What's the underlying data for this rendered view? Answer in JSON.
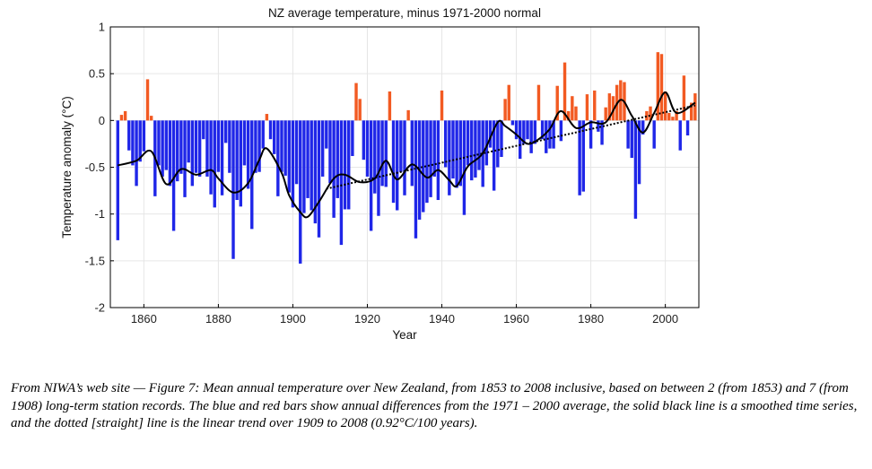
{
  "chart_data": {
    "type": "bar",
    "title": "NZ average temperature, minus 1971-2000 normal",
    "xlabel": "Year",
    "ylabel": "Temperature anomaly (°C)",
    "xlim": [
      1851,
      2009
    ],
    "ylim": [
      -2,
      1
    ],
    "xticks": [
      1860,
      1880,
      1900,
      1920,
      1940,
      1960,
      1980,
      2000
    ],
    "yticks": [
      1,
      0.5,
      0,
      -0.5,
      -1,
      -1.5,
      -2
    ],
    "grid": true,
    "colors": {
      "positive": "#f25a22",
      "negative": "#1f26e8",
      "smooth": "#000000",
      "trend": "#000000"
    },
    "series": [
      {
        "type": "bar",
        "x": [
          1853,
          1854,
          1855,
          1856,
          1857,
          1858,
          1859,
          1860,
          1861,
          1862,
          1863,
          1864,
          1865,
          1866,
          1867,
          1868,
          1869,
          1870,
          1871,
          1872,
          1873,
          1874,
          1875,
          1876,
          1877,
          1878,
          1879,
          1880,
          1881,
          1882,
          1883,
          1884,
          1885,
          1886,
          1887,
          1888,
          1889,
          1890,
          1891,
          1892,
          1893,
          1894,
          1895,
          1896,
          1897,
          1898,
          1899,
          1900,
          1901,
          1902,
          1903,
          1904,
          1905,
          1906,
          1907,
          1908,
          1909,
          1910,
          1911,
          1912,
          1913,
          1914,
          1915,
          1916,
          1917,
          1918,
          1919,
          1920,
          1921,
          1922,
          1923,
          1924,
          1925,
          1926,
          1927,
          1928,
          1929,
          1930,
          1931,
          1932,
          1933,
          1934,
          1935,
          1936,
          1937,
          1938,
          1939,
          1940,
          1941,
          1942,
          1943,
          1944,
          1945,
          1946,
          1947,
          1948,
          1949,
          1950,
          1951,
          1952,
          1953,
          1954,
          1955,
          1956,
          1957,
          1958,
          1959,
          1960,
          1961,
          1962,
          1963,
          1964,
          1965,
          1966,
          1967,
          1968,
          1969,
          1970,
          1971,
          1972,
          1973,
          1974,
          1975,
          1976,
          1977,
          1978,
          1979,
          1980,
          1981,
          1982,
          1983,
          1984,
          1985,
          1986,
          1987,
          1988,
          1989,
          1990,
          1991,
          1992,
          1993,
          1994,
          1995,
          1996,
          1997,
          1998,
          1999,
          2000,
          2001,
          2002,
          2003,
          2004,
          2005,
          2006,
          2007,
          2008
        ],
        "values": [
          -1.28,
          0.06,
          0.1,
          -0.32,
          -0.48,
          -0.7,
          -0.44,
          -0.33,
          0.44,
          0.05,
          -0.81,
          -0.48,
          -0.6,
          -0.53,
          -0.7,
          -1.18,
          -0.65,
          -0.57,
          -0.82,
          -0.45,
          -0.7,
          -0.56,
          -0.6,
          -0.2,
          -0.6,
          -0.79,
          -0.93,
          -0.55,
          -0.8,
          -0.24,
          -0.56,
          -1.48,
          -0.85,
          -0.92,
          -0.48,
          -0.73,
          -1.16,
          -0.56,
          -0.55,
          -0.3,
          0.07,
          -0.2,
          -0.36,
          -0.81,
          -0.55,
          -0.59,
          -0.77,
          -0.93,
          -0.68,
          -1.53,
          -0.99,
          -0.83,
          -0.96,
          -1.1,
          -1.25,
          -0.6,
          -0.3,
          -0.67,
          -1.04,
          -0.83,
          -1.33,
          -0.95,
          -0.95,
          -0.38,
          0.4,
          0.23,
          -0.42,
          -0.6,
          -1.18,
          -0.78,
          -1.02,
          -0.7,
          -0.71,
          0.31,
          -0.88,
          -0.96,
          -0.55,
          -0.8,
          0.11,
          -0.7,
          -1.26,
          -1.06,
          -0.98,
          -0.88,
          -0.82,
          -0.6,
          -0.85,
          0.32,
          -0.5,
          -0.8,
          -0.62,
          -0.72,
          -0.7,
          -1.01,
          -0.48,
          -0.64,
          -0.61,
          -0.53,
          -0.71,
          -0.48,
          -0.29,
          -0.75,
          -0.5,
          -0.39,
          0.23,
          0.38,
          -0.05,
          -0.2,
          -0.41,
          -0.25,
          -0.2,
          -0.35,
          -0.25,
          0.38,
          -0.2,
          -0.35,
          -0.3,
          -0.3,
          0.37,
          -0.22,
          0.62,
          0.1,
          0.26,
          0.15,
          -0.8,
          -0.76,
          0.28,
          -0.3,
          0.32,
          -0.12,
          -0.26,
          0.14,
          0.29,
          0.26,
          0.38,
          0.43,
          0.41,
          -0.3,
          -0.4,
          -1.05,
          -0.68,
          -0.15,
          0.1,
          0.15,
          -0.3,
          0.73,
          0.71,
          0.31,
          0.08,
          0.04,
          0.1,
          -0.32,
          0.48,
          -0.16,
          0.19,
          0.29
        ]
      },
      {
        "type": "line",
        "name": "smoothed",
        "x": [
          1853,
          1858,
          1862,
          1866,
          1870,
          1874,
          1878,
          1880,
          1884,
          1888,
          1891,
          1893,
          1897,
          1899,
          1902,
          1904,
          1907,
          1911,
          1914,
          1918,
          1922,
          1925,
          1928,
          1932,
          1936,
          1939,
          1942,
          1944,
          1947,
          1951,
          1955,
          1957,
          1960,
          1963,
          1966,
          1969,
          1972,
          1976,
          1980,
          1984,
          1988,
          1991,
          1994,
          1997,
          2000,
          2003,
          2008
        ],
        "values": [
          -0.48,
          -0.43,
          -0.33,
          -0.68,
          -0.52,
          -0.58,
          -0.53,
          -0.62,
          -0.77,
          -0.67,
          -0.42,
          -0.3,
          -0.56,
          -0.8,
          -0.98,
          -1.03,
          -0.87,
          -0.62,
          -0.58,
          -0.66,
          -0.62,
          -0.43,
          -0.63,
          -0.47,
          -0.61,
          -0.53,
          -0.64,
          -0.7,
          -0.49,
          -0.35,
          -0.02,
          -0.06,
          -0.15,
          -0.25,
          -0.2,
          -0.09,
          0.1,
          -0.08,
          -0.02,
          -0.02,
          0.22,
          0.05,
          -0.13,
          0.08,
          0.3,
          0.08,
          0.19
        ]
      },
      {
        "type": "line",
        "name": "linear trend",
        "x": [
          1909,
          2008
        ],
        "values": [
          -0.73,
          0.16
        ]
      }
    ]
  },
  "caption": "From NIWA’s web site — Figure 7: Mean annual temperature over New Zealand, from 1853 to 2008 inclusive, based on between 2 (from 1853) and 7 (from 1908) long-term station records. The blue and red bars show annual differences from the 1971 – 2000 average, the solid black line is a smoothed time series, and the dotted [straight] line is the linear trend over 1909 to 2008 (0.92°C/100 years)."
}
